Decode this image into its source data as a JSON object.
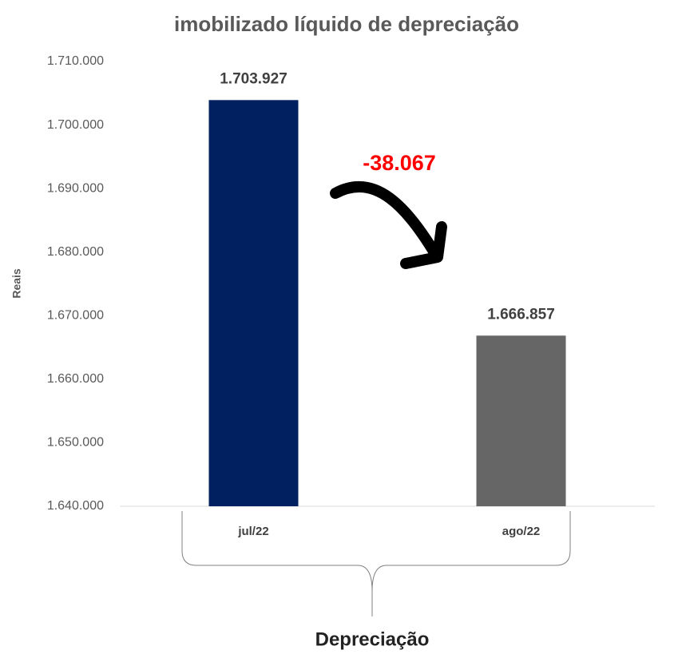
{
  "chart_data": {
    "type": "bar",
    "title": "imobilizado líquido de depreciação",
    "y_label": "Reais",
    "x_label": "Depreciação",
    "annotation": "-38.067",
    "categories": [
      "jul/22",
      "ago/22"
    ],
    "values": [
      1703927,
      1666857
    ],
    "value_labels": [
      "1.703.927",
      "1.666.857"
    ],
    "colors": [
      "#002060",
      "#666666"
    ],
    "ylim": [
      1640000,
      1710000
    ],
    "yticks": [
      {
        "value": 1640000,
        "label": "1.640.000"
      },
      {
        "value": 1650000,
        "label": "1.650.000"
      },
      {
        "value": 1660000,
        "label": "1.660.000"
      },
      {
        "value": 1670000,
        "label": "1.670.000"
      },
      {
        "value": 1680000,
        "label": "1.680.000"
      },
      {
        "value": 1690000,
        "label": "1.690.000"
      },
      {
        "value": 1700000,
        "label": "1.700.000"
      },
      {
        "value": 1710000,
        "label": "1.710.000"
      }
    ],
    "grid": false
  }
}
